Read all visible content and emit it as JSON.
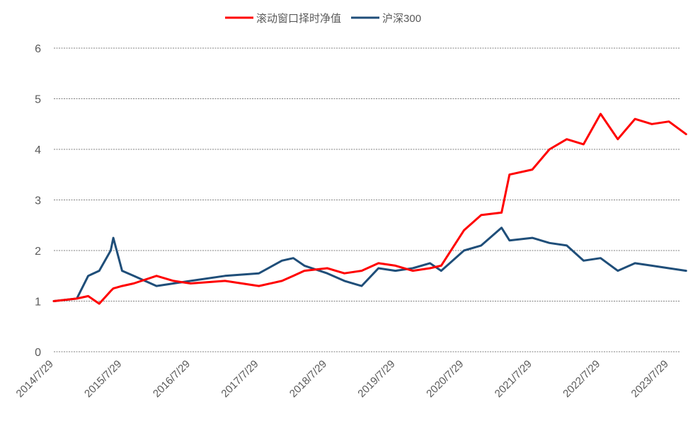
{
  "chart_data": {
    "type": "line",
    "title": "",
    "xlabel": "",
    "ylabel": "",
    "ylim": [
      0,
      6
    ],
    "yticks": [
      "0",
      "1",
      "2",
      "3",
      "4",
      "5",
      "6"
    ],
    "xticks": [
      "2014/7/29",
      "2015/7/29",
      "2016/7/29",
      "2017/7/29",
      "2018/7/29",
      "2019/7/29",
      "2020/7/29",
      "2021/7/29",
      "2022/7/29",
      "2023/7/29"
    ],
    "x": [
      "2014/7/29",
      "2014/11/29",
      "2015/1/29",
      "2015/3/29",
      "2015/5/29",
      "2015/6/12",
      "2015/7/29",
      "2015/9/29",
      "2016/1/29",
      "2016/4/29",
      "2016/7/29",
      "2017/1/29",
      "2017/7/29",
      "2017/11/29",
      "2018/1/29",
      "2018/3/29",
      "2018/7/29",
      "2018/10/29",
      "2019/1/29",
      "2019/4/29",
      "2019/7/29",
      "2019/10/29",
      "2020/1/29",
      "2020/3/29",
      "2020/7/29",
      "2020/10/29",
      "2021/2/15",
      "2021/3/29",
      "2021/7/29",
      "2021/10/29",
      "2022/1/29",
      "2022/4/29",
      "2022/7/29",
      "2022/10/29",
      "2023/1/29",
      "2023/4/29",
      "2023/7/29",
      "2023/10/29"
    ],
    "series": [
      {
        "name": "滚动窗口择时净值",
        "color": "#ff0000",
        "values": [
          1.0,
          1.05,
          1.1,
          0.95,
          1.2,
          1.25,
          1.3,
          1.35,
          1.5,
          1.4,
          1.35,
          1.4,
          1.3,
          1.4,
          1.5,
          1.6,
          1.65,
          1.55,
          1.6,
          1.75,
          1.7,
          1.6,
          1.65,
          1.7,
          2.4,
          2.7,
          2.75,
          3.5,
          3.6,
          4.0,
          4.2,
          4.1,
          4.7,
          4.2,
          4.6,
          4.5,
          4.55,
          4.3
        ]
      },
      {
        "name": "沪深300",
        "color": "#1f4e79",
        "values": [
          1.0,
          1.05,
          1.5,
          1.6,
          2.0,
          2.25,
          1.6,
          1.5,
          1.3,
          1.35,
          1.4,
          1.5,
          1.55,
          1.8,
          1.85,
          1.7,
          1.55,
          1.4,
          1.3,
          1.65,
          1.6,
          1.65,
          1.75,
          1.6,
          2.0,
          2.1,
          2.45,
          2.2,
          2.25,
          2.15,
          2.1,
          1.8,
          1.85,
          1.6,
          1.75,
          1.7,
          1.65,
          1.6
        ]
      }
    ],
    "legend": "top",
    "grid": true
  }
}
